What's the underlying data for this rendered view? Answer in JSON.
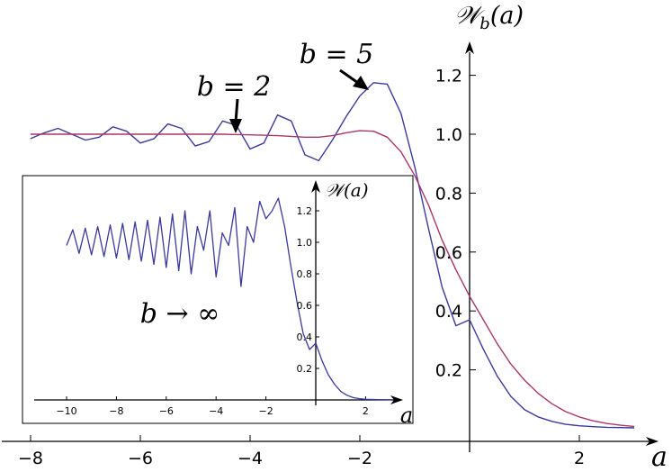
{
  "chart_data": [
    {
      "type": "line",
      "title": "",
      "ylabel": "𝒲_b(a)",
      "xlabel": "a",
      "ylabel_main": "𝒲",
      "ylabel_sub": "b",
      "ylabel_arg": "(a)",
      "xlim": [
        -8,
        3
      ],
      "ylim": [
        0,
        1.3
      ],
      "x_ticks": [
        -8,
        -6,
        -4,
        -2,
        2
      ],
      "x_tick_labels": [
        "−8",
        "−6",
        "−4",
        "−2",
        "2"
      ],
      "y_ticks": [
        0.2,
        0.4,
        0.6,
        0.8,
        1.0,
        1.2
      ],
      "y_tick_labels": [
        "0.2",
        "0.4",
        "0.6",
        "0.8",
        "1.0",
        "1.2"
      ],
      "series": [
        {
          "name": "b = 5",
          "color": "#3b3a9c",
          "x": [
            -8.0,
            -7.75,
            -7.5,
            -7.25,
            -7.0,
            -6.75,
            -6.5,
            -6.25,
            -6.0,
            -5.75,
            -5.5,
            -5.25,
            -5.0,
            -4.75,
            -4.5,
            -4.25,
            -4.0,
            -3.75,
            -3.5,
            -3.25,
            -3.0,
            -2.75,
            -2.5,
            -2.25,
            -2.0,
            -1.75,
            -1.5,
            -1.25,
            -1.0,
            -0.75,
            -0.5,
            -0.25,
            0.0,
            0.25,
            0.5,
            0.75,
            1.0,
            1.25,
            1.5,
            1.75,
            2.0,
            2.25,
            2.5,
            2.75,
            3.0
          ],
          "y": [
            0.985,
            1.005,
            1.02,
            1.0,
            0.98,
            0.99,
            1.025,
            1.01,
            0.97,
            0.985,
            1.035,
            1.02,
            0.96,
            0.975,
            1.045,
            1.03,
            0.95,
            0.97,
            1.065,
            1.045,
            0.93,
            0.91,
            0.98,
            1.06,
            1.13,
            1.175,
            1.17,
            1.07,
            0.89,
            0.68,
            0.48,
            0.35,
            0.37,
            0.27,
            0.18,
            0.11,
            0.065,
            0.04,
            0.025,
            0.015,
            0.01,
            0.007,
            0.005,
            0.004,
            0.003
          ]
        },
        {
          "name": "b = 2",
          "color": "#a8376a",
          "x": [
            -8.0,
            -7.5,
            -7.0,
            -6.5,
            -6.0,
            -5.5,
            -5.0,
            -4.5,
            -4.0,
            -3.5,
            -3.0,
            -2.75,
            -2.5,
            -2.25,
            -2.0,
            -1.75,
            -1.5,
            -1.25,
            -1.0,
            -0.75,
            -0.5,
            -0.25,
            0.0,
            0.25,
            0.5,
            0.75,
            1.0,
            1.25,
            1.5,
            1.75,
            2.0,
            2.25,
            2.5,
            2.75,
            3.0
          ],
          "y": [
            1.0,
            1.0,
            1.0,
            1.0,
            1.0,
            1.0,
            1.0,
            1.0,
            0.998,
            0.995,
            0.99,
            0.99,
            0.995,
            1.005,
            1.012,
            1.01,
            0.99,
            0.94,
            0.86,
            0.76,
            0.64,
            0.54,
            0.45,
            0.37,
            0.29,
            0.22,
            0.165,
            0.12,
            0.085,
            0.058,
            0.04,
            0.027,
            0.018,
            0.012,
            0.008
          ]
        }
      ],
      "annotations": [
        "b = 2",
        "b = 5"
      ]
    },
    {
      "type": "line",
      "title": "",
      "ylabel": "𝒲(a)",
      "xlabel": "a",
      "ylabel_main": "𝒲",
      "ylabel_arg": "(a)",
      "xlim": [
        -11,
        3
      ],
      "ylim": [
        0,
        1.35
      ],
      "x_ticks": [
        -10,
        -8,
        -6,
        -4,
        -2,
        2
      ],
      "x_tick_labels": [
        "−10",
        "−8",
        "−6",
        "−4",
        "−2",
        "2"
      ],
      "y_ticks": [
        0.2,
        0.4,
        0.6,
        0.8,
        1.0,
        1.2
      ],
      "y_tick_labels": [
        "0.2",
        "0.4",
        "0.6",
        "0.8",
        "1.0",
        "1.2"
      ],
      "series": [
        {
          "color": "#3b3a9c",
          "x": [
            -10.0,
            -9.75,
            -9.5,
            -9.25,
            -9.0,
            -8.75,
            -8.5,
            -8.25,
            -8.0,
            -7.75,
            -7.5,
            -7.25,
            -7.0,
            -6.75,
            -6.5,
            -6.25,
            -6.0,
            -5.75,
            -5.5,
            -5.25,
            -5.0,
            -4.75,
            -4.5,
            -4.25,
            -4.0,
            -3.75,
            -3.5,
            -3.25,
            -3.0,
            -2.75,
            -2.5,
            -2.25,
            -2.0,
            -1.75,
            -1.5,
            -1.25,
            -1.0,
            -0.75,
            -0.5,
            -0.25,
            0.0,
            0.25,
            0.5,
            0.75,
            1.0,
            1.25,
            1.5,
            1.75,
            2.0,
            2.5,
            3.0
          ],
          "y": [
            0.98,
            1.08,
            0.93,
            1.09,
            0.92,
            1.1,
            0.91,
            1.11,
            0.9,
            1.12,
            0.89,
            1.13,
            0.88,
            1.14,
            0.86,
            1.16,
            0.84,
            1.18,
            0.82,
            1.2,
            0.8,
            1.1,
            0.95,
            1.2,
            0.78,
            1.06,
            0.98,
            1.22,
            0.72,
            1.1,
            1.0,
            1.26,
            1.15,
            1.2,
            1.28,
            1.1,
            0.85,
            0.62,
            0.42,
            0.32,
            0.36,
            0.25,
            0.16,
            0.1,
            0.055,
            0.03,
            0.015,
            0.008,
            0.004,
            0.002,
            0.001
          ]
        }
      ],
      "annotations": [
        "b → ∞"
      ]
    }
  ]
}
